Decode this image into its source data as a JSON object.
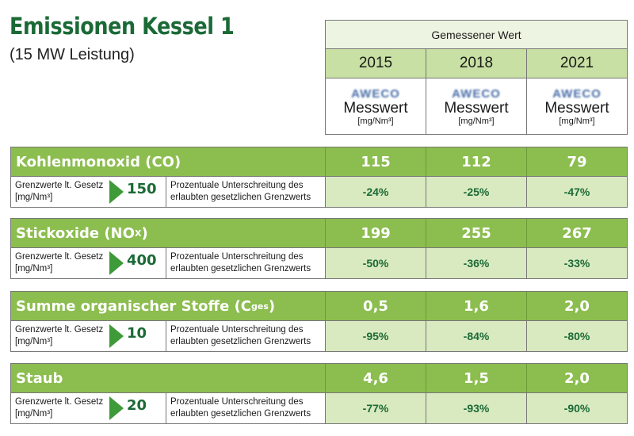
{
  "title": "Emissionen Kessel 1",
  "subtitle": "(15 MW Leistung)",
  "header": {
    "group_label": "Gemessener Wert",
    "years": [
      "2015",
      "2018",
      "2021"
    ],
    "logo_text": "AWECO",
    "measure_label": "Messwert",
    "unit": "[mg/Nm³]"
  },
  "limit_label": "Grenzwerte lt. Gesetz",
  "limit_unit": "[mg/Nm³]",
  "desc_line1": "Prozentuale Unterschreitung des",
  "desc_line2": "erlaubten gesetzlichen Grenzwerts",
  "colors": {
    "title": "#1b6a36",
    "row_header": "#8cbd4f",
    "percent_bg": "#d9eac0",
    "year_bg": "#c8e0a3"
  },
  "pollutants": [
    {
      "name": "Kohlenmonoxid (CO)",
      "sub": "",
      "suffix": "",
      "limit": "150",
      "values": [
        "115",
        "112",
        "79"
      ],
      "percents": [
        "-24%",
        "-25%",
        "-47%"
      ]
    },
    {
      "name": "Stickoxide (NO",
      "sub": "X",
      "suffix": ")",
      "limit": "400",
      "values": [
        "199",
        "255",
        "267"
      ],
      "percents": [
        "-50%",
        "-36%",
        "-33%"
      ]
    },
    {
      "name": "Summe organischer Stoffe (C",
      "sub": "ges",
      "suffix": ")",
      "limit": "10",
      "values": [
        "0,5",
        "1,6",
        "2,0"
      ],
      "percents": [
        "-95%",
        "-84%",
        "-80%"
      ]
    },
    {
      "name": "Staub",
      "sub": "",
      "suffix": "",
      "limit": "20",
      "values": [
        "4,6",
        "1,5",
        "2,0"
      ],
      "percents": [
        "-77%",
        "-93%",
        "-90%"
      ]
    }
  ]
}
